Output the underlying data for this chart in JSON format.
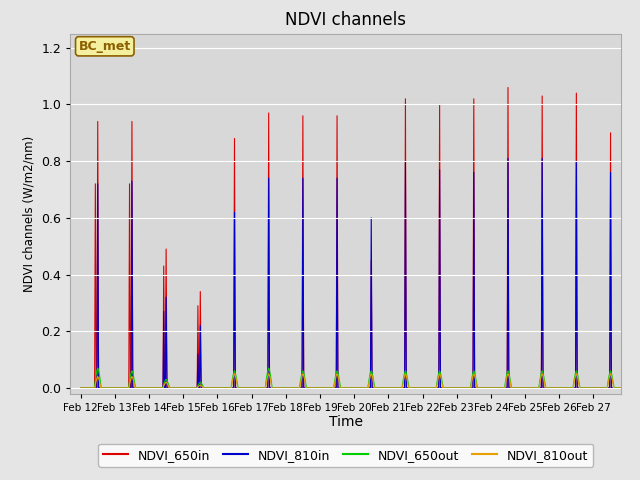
{
  "title": "NDVI channels",
  "xlabel": "Time",
  "ylabel": "NDVI channels (W/m2/nm)",
  "ylim": [
    -0.02,
    1.25
  ],
  "background_color": "#e5e5e5",
  "plot_bg_color": "#d8d8d8",
  "annotation_text": "BC_met",
  "annotation_bg": "#f5f0a0",
  "annotation_border": "#8b6000",
  "colors": {
    "NDVI_650in": "#dd0000",
    "NDVI_810in": "#0000cc",
    "NDVI_650out": "#00cc00",
    "NDVI_810out": "#e8a000"
  },
  "xtick_labels": [
    "Feb 12",
    "Feb 13",
    "Feb 14",
    "Feb 15",
    "Feb 16",
    "Feb 17",
    "Feb 18",
    "Feb 19",
    "Feb 20",
    "Feb 21",
    "Feb 22",
    "Feb 23",
    "Feb 24",
    "Feb 25",
    "Feb 26",
    "Feb 27"
  ],
  "spike_data": {
    "NDVI_650in": [
      0.94,
      0.94,
      0.49,
      0.34,
      0.88,
      0.97,
      0.96,
      0.96,
      0.45,
      1.02,
      1.0,
      1.02,
      1.06,
      1.03,
      1.04,
      0.9
    ],
    "NDVI_650in_b": [
      0.72,
      0.72,
      0.43,
      0.29,
      0.0,
      0.0,
      0.0,
      0.0,
      0.0,
      0.0,
      0.0,
      0.0,
      0.0,
      0.0,
      0.0,
      0.0
    ],
    "NDVI_810in": [
      0.72,
      0.73,
      0.32,
      0.22,
      0.62,
      0.74,
      0.74,
      0.74,
      0.6,
      0.8,
      0.77,
      0.76,
      0.81,
      0.81,
      0.8,
      0.76
    ],
    "NDVI_810in_b": [
      0.0,
      0.0,
      0.27,
      0.12,
      0.0,
      0.0,
      0.0,
      0.0,
      0.0,
      0.0,
      0.0,
      0.0,
      0.0,
      0.0,
      0.0,
      0.0
    ],
    "NDVI_650out": [
      0.07,
      0.06,
      0.03,
      0.02,
      0.06,
      0.07,
      0.06,
      0.06,
      0.06,
      0.06,
      0.06,
      0.06,
      0.06,
      0.06,
      0.06,
      0.06
    ],
    "NDVI_810out": [
      0.04,
      0.04,
      0.02,
      0.01,
      0.05,
      0.05,
      0.05,
      0.05,
      0.05,
      0.05,
      0.05,
      0.05,
      0.05,
      0.05,
      0.05,
      0.05
    ]
  }
}
